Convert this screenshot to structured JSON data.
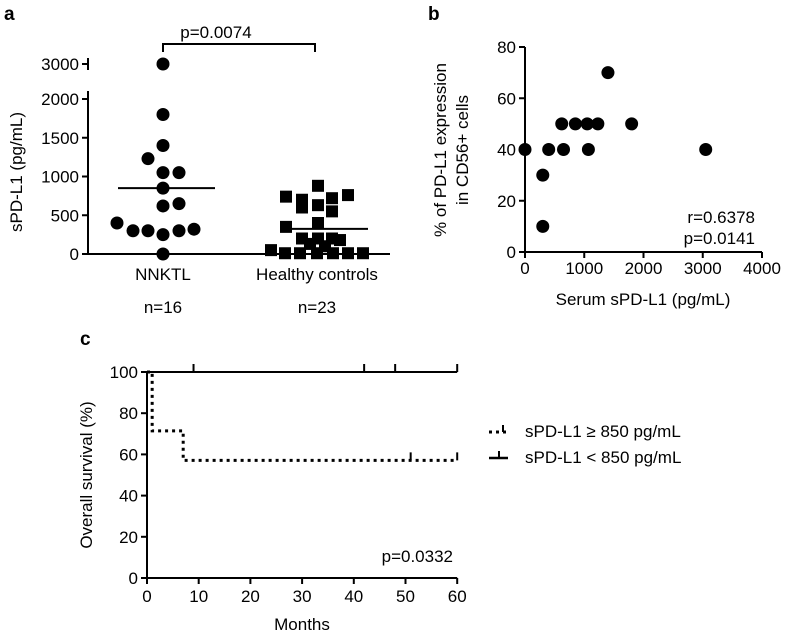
{
  "chart_data": [
    {
      "panel_label": "a",
      "type": "scatter",
      "ylabel": "sPD-L1 (pg/mL)",
      "yticks": [
        "0",
        "500",
        "1000",
        "1500",
        "2000",
        "3000"
      ],
      "ylim": [
        0,
        3000
      ],
      "axis_break": [
        2000,
        3000
      ],
      "categories": [
        "NNKTL",
        "Healthy controls"
      ],
      "counts": [
        "n=16",
        "n=23"
      ],
      "significance": "p=0.0074",
      "series": [
        {
          "name": "NNKTL",
          "marker": "circle",
          "median": 850,
          "values": [
            3000,
            1800,
            1400,
            1230,
            1050,
            1050,
            850,
            620,
            650,
            400,
            300,
            300,
            250,
            300,
            320,
            0
          ]
        },
        {
          "name": "Healthy controls",
          "marker": "square",
          "median": 325,
          "values": [
            880,
            740,
            700,
            600,
            720,
            760,
            630,
            550,
            350,
            400,
            200,
            200,
            200,
            180,
            130,
            100,
            50,
            10,
            10,
            10,
            10,
            10,
            10
          ]
        }
      ]
    },
    {
      "panel_label": "b",
      "type": "scatter",
      "xlabel": "Serum sPD-L1 (pg/mL)",
      "ylabel_lines": [
        "% of  PD-L1 expression",
        "in CD56+ cells"
      ],
      "xlim": [
        0,
        4000
      ],
      "ylim": [
        0,
        80
      ],
      "xticks": [
        "0",
        "1000",
        "2000",
        "3000",
        "4000"
      ],
      "yticks": [
        "0",
        "20",
        "40",
        "60",
        "80"
      ],
      "stats": [
        "r=0.6378",
        "p=0.0141"
      ],
      "points": [
        [
          0,
          40
        ],
        [
          300,
          30
        ],
        [
          300,
          10
        ],
        [
          400,
          40
        ],
        [
          620,
          50
        ],
        [
          650,
          40
        ],
        [
          850,
          50
        ],
        [
          1050,
          50
        ],
        [
          1070,
          40
        ],
        [
          1230,
          50
        ],
        [
          1400,
          70
        ],
        [
          1800,
          50
        ],
        [
          3050,
          40
        ]
      ]
    },
    {
      "panel_label": "c",
      "type": "line",
      "xlabel": "Months",
      "ylabel": "Overall survival (%)",
      "xlim": [
        0,
        60
      ],
      "ylim": [
        0,
        100
      ],
      "xticks": [
        "0",
        "10",
        "20",
        "30",
        "40",
        "50",
        "60"
      ],
      "yticks": [
        "0",
        "20",
        "40",
        "60",
        "80",
        "100"
      ],
      "pvalue": "p=0.0332",
      "legend_position": "right",
      "series": [
        {
          "name": "sPD-L1 ≥ 850 pg/mL",
          "style": "dotted",
          "steps": [
            [
              0,
              100
            ],
            [
              1,
              100
            ],
            [
              1,
              71.4
            ],
            [
              7,
              71.4
            ],
            [
              7,
              57.1
            ],
            [
              60,
              57.1
            ]
          ],
          "censored": [
            51,
            60
          ]
        },
        {
          "name": "sPD-L1 < 850 pg/mL",
          "style": "solid",
          "steps": [
            [
              0,
              100
            ],
            [
              60,
              100
            ]
          ],
          "censored": [
            9,
            42,
            48,
            60
          ]
        }
      ]
    }
  ]
}
